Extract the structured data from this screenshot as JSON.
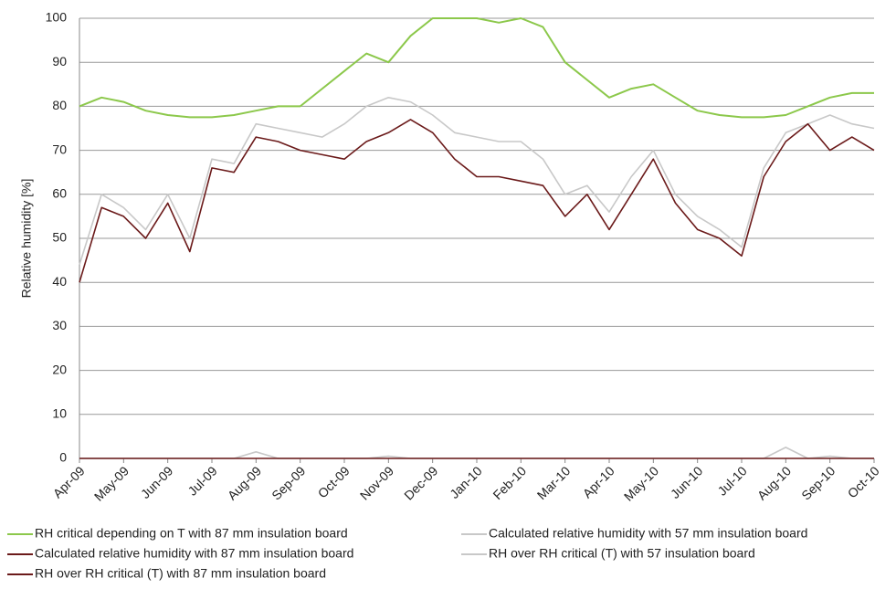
{
  "chart_data": {
    "type": "line",
    "y_label": "Relative humidity [%]",
    "categories": [
      "Apr-09",
      null,
      "May-09",
      null,
      "Jun-09",
      null,
      "Jul-09",
      null,
      "Aug-09",
      null,
      "Sep-09",
      null,
      "Oct-09",
      null,
      "Nov-09",
      null,
      "Dec-09",
      null,
      "Jan-10",
      null,
      "Feb-10",
      null,
      "Mar-10",
      null,
      "Apr-10",
      null,
      "May-10",
      null,
      "Jun-10",
      null,
      "Jul-10",
      null,
      "Aug-10",
      null,
      "Sep-10",
      null,
      "Oct-10"
    ],
    "series": [
      {
        "name": "RH critical depending on T with 87 mm insulation board",
        "color": "#8cc84b",
        "values": [
          80,
          82,
          81,
          79,
          78,
          77.5,
          77.5,
          78,
          79,
          80,
          80,
          84,
          88,
          92,
          90,
          96,
          100,
          100,
          100,
          99,
          100,
          98,
          90,
          86,
          82,
          84,
          85,
          82,
          79,
          78,
          77.5,
          77.5,
          78,
          80,
          82,
          83,
          83
        ]
      },
      {
        "name": "Calculated relative humidity with 57 mm insulation board",
        "color": "#c8c8c8",
        "values": [
          44,
          60,
          57,
          52,
          60,
          50,
          68,
          67,
          76,
          75,
          74,
          73,
          76,
          80,
          82,
          81,
          78,
          74,
          73,
          72,
          72,
          68,
          60,
          62,
          56,
          64,
          70,
          60,
          55,
          52,
          48,
          66,
          74,
          76,
          78,
          76,
          75
        ]
      },
      {
        "name": "Calculated relative humidity with 87 mm insulation board",
        "color": "#6b1a1a",
        "values": [
          40,
          57,
          55,
          50,
          58,
          47,
          66,
          65,
          73,
          72,
          70,
          69,
          68,
          72,
          74,
          77,
          74,
          68,
          64,
          64,
          63,
          62,
          55,
          60,
          52,
          60,
          68,
          58,
          52,
          50,
          46,
          64,
          72,
          76,
          70,
          73,
          70
        ]
      },
      {
        "name": "RH over RH critical (T) with 57 insulation board",
        "color": "#c8c8c8",
        "values": [
          0,
          0,
          0,
          0,
          0,
          0,
          0,
          0,
          1.5,
          0,
          0,
          0,
          0,
          0,
          0.5,
          0,
          0,
          0,
          0,
          0,
          0,
          0,
          0,
          0,
          0,
          0,
          0,
          0,
          0,
          0,
          0,
          0,
          2.5,
          0,
          0.5,
          0,
          0
        ]
      },
      {
        "name": "RH over RH critical (T) with 87 mm insulation board",
        "color": "#6b1a1a",
        "values": [
          0,
          0,
          0,
          0,
          0,
          0,
          0,
          0,
          0,
          0,
          0,
          0,
          0,
          0,
          0,
          0,
          0,
          0,
          0,
          0,
          0,
          0,
          0,
          0,
          0,
          0,
          0,
          0,
          0,
          0,
          0,
          0,
          0,
          0,
          0,
          0,
          0
        ]
      }
    ],
    "ylim": [
      0,
      100
    ],
    "yticks": [
      0,
      10,
      20,
      30,
      40,
      50,
      60,
      70,
      80,
      90,
      100
    ],
    "grid": true
  }
}
